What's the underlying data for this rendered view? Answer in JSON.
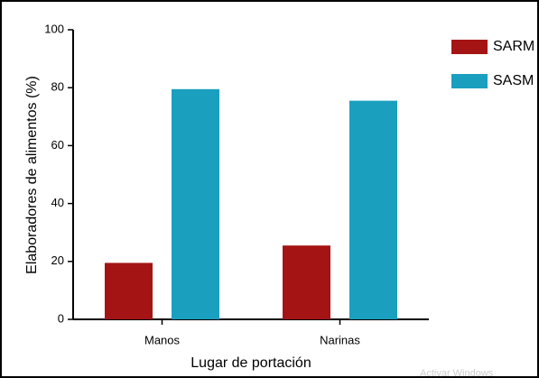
{
  "chart_data": {
    "type": "bar",
    "categories": [
      "Manos",
      "Narinas"
    ],
    "series": [
      {
        "name": "SARM",
        "color": "#a51414",
        "values": [
          19.5,
          25.5
        ]
      },
      {
        "name": "SASM",
        "color": "#1a9fbf",
        "values": [
          79.5,
          75.5
        ]
      }
    ],
    "ylim": [
      0,
      100
    ],
    "yticks": [
      0,
      20,
      40,
      60,
      80,
      100
    ],
    "y_label": "Elaboradores de alimentos (%)",
    "x_label": "Lugar de portación",
    "legend": "top-right",
    "watermark": "Activar Windows"
  }
}
